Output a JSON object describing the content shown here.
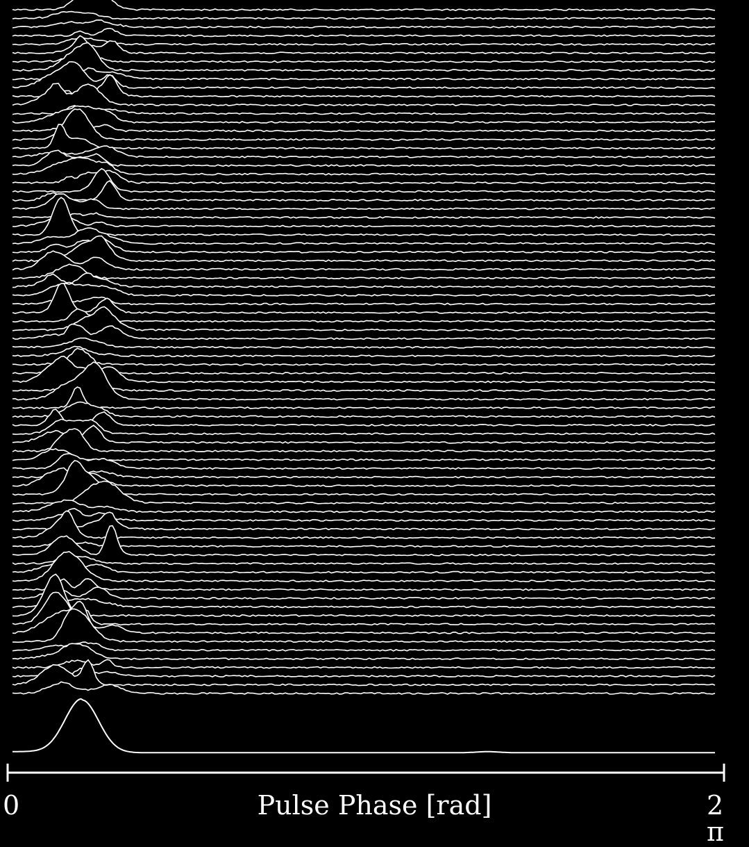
{
  "chart_data": {
    "type": "line",
    "subtype": "stacked-ridgeline",
    "title": "",
    "xlabel": "Pulse Phase [rad]",
    "ylabel": "",
    "xlim_labels": [
      "0",
      "2 π"
    ],
    "xlim": [
      0,
      6.283
    ],
    "grid": false,
    "legend": "none",
    "background": "#000000",
    "line_color": "#ffffff",
    "n_pulses": 80,
    "pulse_center_phase": 0.62,
    "pulse_spread_phase": 0.28,
    "pulse_relative_amplitude_range": [
      0.1,
      1.0
    ],
    "average_profile": {
      "peak_phase": 0.62,
      "peak_height": 1.0,
      "baseline": 0.03,
      "secondary_bump_phase": 4.25,
      "secondary_bump_height": 0.02
    }
  }
}
